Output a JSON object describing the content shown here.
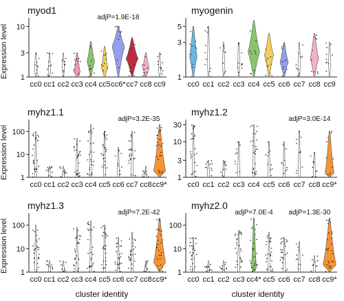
{
  "figure": {
    "ylabel": "Expression level",
    "xlabel": "cluster identity"
  },
  "chart_data": [
    {
      "type": "violin",
      "title": "myod1",
      "scale": "log",
      "ylim": [
        1,
        13
      ],
      "ticks": [
        1,
        3,
        10
      ],
      "categories": [
        "cc0",
        "cc1",
        "cc2",
        "cc3",
        "cc4",
        "cc5",
        "cc6*",
        "cc7",
        "cc8",
        "cc9"
      ],
      "colors": [
        "#ffffff",
        "#ffffff",
        "#ffffff",
        "#f08aa6",
        "#7dbf5e",
        "#f2c94c",
        "#8a95e8",
        "#b0182a",
        "#f4a7c0",
        "#ffffff"
      ],
      "violins": [
        {
          "center": 1.4,
          "width": 0.05,
          "lo": 1,
          "hi": 3
        },
        {
          "center": 1.4,
          "width": 0.05,
          "lo": 1,
          "hi": 3
        },
        {
          "center": 1.4,
          "width": 0.05,
          "lo": 1,
          "hi": 3
        },
        {
          "center": 1.25,
          "width": 0.45,
          "lo": 1,
          "hi": 3
        },
        {
          "center": 2.0,
          "width": 0.55,
          "lo": 1,
          "hi": 5
        },
        {
          "center": 1.5,
          "width": 0.45,
          "lo": 1,
          "hi": 4
        },
        {
          "center": 4.0,
          "width": 0.95,
          "lo": 1,
          "hi": 10
        },
        {
          "center": 2.3,
          "width": 0.9,
          "lo": 1,
          "hi": 6
        },
        {
          "center": 1.5,
          "width": 0.5,
          "lo": 1,
          "hi": 3
        },
        {
          "center": 1.4,
          "width": 0.05,
          "lo": 1,
          "hi": 3
        }
      ],
      "annotation": {
        "text": "adjP=1.9E-18",
        "category": "cc6*"
      }
    },
    {
      "type": "violin",
      "title": "myogenin",
      "scale": "log",
      "ylim": [
        1,
        6
      ],
      "ticks": [
        1,
        3,
        5
      ],
      "categories": [
        "cc0",
        "cc1",
        "cc2",
        "cc3",
        "cc4",
        "cc5",
        "cc6",
        "cc7",
        "cc8",
        "cc9"
      ],
      "colors": [
        "#5aaee0",
        "#ffffff",
        "#ffffff",
        "#ffffff",
        "#7dbf5e",
        "#f2c94c",
        "#8a95e8",
        "#ffffff",
        "#f4a7c0",
        "#ffffff"
      ],
      "violins": [
        {
          "center": 1.9,
          "width": 0.5,
          "lo": 1,
          "hi": 5
        },
        {
          "center": 1.5,
          "width": 0.05,
          "lo": 1,
          "hi": 5
        },
        {
          "center": 1.5,
          "width": 0.05,
          "lo": 1,
          "hi": 3
        },
        {
          "center": 1.5,
          "width": 0.05,
          "lo": 1,
          "hi": 3
        },
        {
          "center": 2.2,
          "width": 0.8,
          "lo": 1,
          "hi": 6
        },
        {
          "center": 2.0,
          "width": 0.6,
          "lo": 1,
          "hi": 4
        },
        {
          "center": 1.6,
          "width": 0.55,
          "lo": 1,
          "hi": 3
        },
        {
          "center": 1.5,
          "width": 0.05,
          "lo": 1,
          "hi": 3
        },
        {
          "center": 1.8,
          "width": 0.55,
          "lo": 1,
          "hi": 4
        },
        {
          "center": 1.5,
          "width": 0.05,
          "lo": 1,
          "hi": 3
        }
      ],
      "annotation": null
    },
    {
      "type": "violin",
      "title": "myhz1.1",
      "scale": "log",
      "ylim": [
        1,
        250
      ],
      "ticks": [
        1,
        10,
        100
      ],
      "categories": [
        "cc0",
        "cc1",
        "cc2",
        "cc3",
        "cc4",
        "cc5",
        "cc6",
        "cc7",
        "cc8",
        "cc9*"
      ],
      "colors": [
        "#ffffff",
        "#ffffff",
        "#ffffff",
        "#ffffff",
        "#ffffff",
        "#ffffff",
        "#ffffff",
        "#ffffff",
        "#ffffff",
        "#f5871f"
      ],
      "violins": [
        {
          "center": 1.1,
          "width": 0.05,
          "lo": 1,
          "hi": 100
        },
        {
          "center": 1.1,
          "width": 0.05,
          "lo": 1,
          "hi": 3
        },
        {
          "center": 1.1,
          "width": 0.05,
          "lo": 1,
          "hi": 3
        },
        {
          "center": 1.1,
          "width": 0.05,
          "lo": 1,
          "hi": 50
        },
        {
          "center": 1.1,
          "width": 0.05,
          "lo": 1,
          "hi": 200
        },
        {
          "center": 1.1,
          "width": 0.05,
          "lo": 1,
          "hi": 100
        },
        {
          "center": 1.1,
          "width": 0.05,
          "lo": 1,
          "hi": 20
        },
        {
          "center": 1.1,
          "width": 0.05,
          "lo": 1,
          "hi": 100
        },
        {
          "center": 1.1,
          "width": 0.05,
          "lo": 1,
          "hi": 3
        },
        {
          "center": 1.8,
          "width": 0.9,
          "lo": 1,
          "hi": 200
        }
      ],
      "annotation": {
        "text": "adjP=3.2E-35",
        "category": "cc9*"
      }
    },
    {
      "type": "violin",
      "title": "myhz1.2",
      "scale": "log",
      "ylim": [
        1,
        35
      ],
      "ticks": [
        1,
        3,
        10,
        30
      ],
      "categories": [
        "cc0",
        "cc1",
        "cc2",
        "cc3",
        "cc4",
        "cc5",
        "cc6",
        "cc7",
        "cc8",
        "cc9*"
      ],
      "colors": [
        "#ffffff",
        "#ffffff",
        "#ffffff",
        "#ffffff",
        "#ffffff",
        "#ffffff",
        "#ffffff",
        "#ffffff",
        "#ffffff",
        "#f5871f"
      ],
      "violins": [
        {
          "center": 1.1,
          "width": 0.05,
          "lo": 1,
          "hi": 30
        },
        {
          "center": 1.1,
          "width": 0.05,
          "lo": 1,
          "hi": 3
        },
        {
          "center": 1.1,
          "width": 0.05,
          "lo": 1,
          "hi": 3
        },
        {
          "center": 1.1,
          "width": 0.05,
          "lo": 1,
          "hi": 10
        },
        {
          "center": 1.1,
          "width": 0.05,
          "lo": 1,
          "hi": 30
        },
        {
          "center": 1.1,
          "width": 0.05,
          "lo": 1,
          "hi": 10
        },
        {
          "center": 1.1,
          "width": 0.05,
          "lo": 1,
          "hi": 10
        },
        {
          "center": 1.1,
          "width": 0.05,
          "lo": 1,
          "hi": 20
        },
        {
          "center": 1.1,
          "width": 0.05,
          "lo": 1,
          "hi": 5
        },
        {
          "center": 1.3,
          "width": 0.6,
          "lo": 1,
          "hi": 20
        }
      ],
      "annotation": {
        "text": "adjP=3.0E-14",
        "category": "cc9*"
      }
    },
    {
      "type": "violin",
      "title": "myhz1.3",
      "scale": "log",
      "ylim": [
        1,
        250
      ],
      "ticks": [
        1,
        10,
        100
      ],
      "categories": [
        "cc0",
        "cc1",
        "cc2",
        "cc3",
        "cc4",
        "cc5",
        "cc6",
        "cc7",
        "cc8",
        "cc9*"
      ],
      "colors": [
        "#ffffff",
        "#ffffff",
        "#ffffff",
        "#ffffff",
        "#ffffff",
        "#ffffff",
        "#ffffff",
        "#ffffff",
        "#ffffff",
        "#f5871f"
      ],
      "violins": [
        {
          "center": 1.1,
          "width": 0.05,
          "lo": 1,
          "hi": 100
        },
        {
          "center": 1.1,
          "width": 0.05,
          "lo": 1,
          "hi": 3
        },
        {
          "center": 1.1,
          "width": 0.05,
          "lo": 1,
          "hi": 3
        },
        {
          "center": 1.1,
          "width": 0.05,
          "lo": 1,
          "hi": 80
        },
        {
          "center": 1.1,
          "width": 0.05,
          "lo": 1,
          "hi": 150
        },
        {
          "center": 1.1,
          "width": 0.05,
          "lo": 1,
          "hi": 100
        },
        {
          "center": 1.1,
          "width": 0.05,
          "lo": 1,
          "hi": 30
        },
        {
          "center": 1.1,
          "width": 0.05,
          "lo": 1,
          "hi": 50
        },
        {
          "center": 1.1,
          "width": 0.05,
          "lo": 1,
          "hi": 3
        },
        {
          "center": 2.5,
          "width": 0.9,
          "lo": 1,
          "hi": 200
        }
      ],
      "annotation": {
        "text": "adjP=7.2E-42",
        "category": "cc9*"
      }
    },
    {
      "type": "violin",
      "title": "myhz2.0",
      "scale": "log",
      "ylim": [
        1,
        250
      ],
      "ticks": [
        1,
        10,
        100
      ],
      "categories": [
        "cc0",
        "cc1",
        "cc2",
        "cc3",
        "cc4*",
        "cc5",
        "cc6",
        "cc7",
        "cc8",
        "cc9*"
      ],
      "colors": [
        "#ffffff",
        "#ffffff",
        "#ffffff",
        "#ffffff",
        "#7dbf5e",
        "#ffffff",
        "#ffffff",
        "#ffffff",
        "#ffffff",
        "#f5871f"
      ],
      "violins": [
        {
          "center": 1.1,
          "width": 0.05,
          "lo": 1,
          "hi": 30
        },
        {
          "center": 1.1,
          "width": 0.05,
          "lo": 1,
          "hi": 3
        },
        {
          "center": 1.1,
          "width": 0.05,
          "lo": 1,
          "hi": 3
        },
        {
          "center": 1.1,
          "width": 0.05,
          "lo": 1,
          "hi": 60
        },
        {
          "center": 1.5,
          "width": 0.3,
          "lo": 1,
          "hi": 200
        },
        {
          "center": 1.1,
          "width": 0.05,
          "lo": 1,
          "hi": 50
        },
        {
          "center": 1.1,
          "width": 0.05,
          "lo": 1,
          "hi": 30
        },
        {
          "center": 1.1,
          "width": 0.05,
          "lo": 1,
          "hi": 20
        },
        {
          "center": 1.1,
          "width": 0.05,
          "lo": 1,
          "hi": 5
        },
        {
          "center": 2.0,
          "width": 0.9,
          "lo": 1,
          "hi": 200
        }
      ],
      "annotation": {
        "text": "adjP=1.3E-30",
        "category": "cc9*"
      },
      "annotation2": {
        "text": "adjP=7.0E-4",
        "category": "cc4*"
      }
    }
  ]
}
